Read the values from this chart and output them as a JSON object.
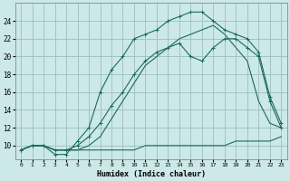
{
  "title": "",
  "xlabel": "Humidex (Indice chaleur)",
  "bg_color": "#cce8e8",
  "grid_color": "#9bbfbf",
  "line_color": "#1a6b5a",
  "xlim": [
    -0.5,
    23.5
  ],
  "ylim": [
    8.5,
    26.0
  ],
  "xticks": [
    0,
    1,
    2,
    3,
    4,
    5,
    6,
    7,
    8,
    9,
    10,
    11,
    12,
    13,
    14,
    15,
    16,
    17,
    18,
    19,
    20,
    21,
    22,
    23
  ],
  "yticks": [
    10,
    12,
    14,
    16,
    18,
    20,
    22,
    24
  ],
  "line1_x": [
    0,
    1,
    2,
    3,
    4,
    5,
    6,
    7,
    8,
    9,
    10,
    11,
    12,
    13,
    14,
    15,
    16,
    17,
    18,
    19,
    20,
    21,
    22,
    23
  ],
  "line1_y": [
    9.5,
    10,
    10,
    9.5,
    9.5,
    9.5,
    9.5,
    9.5,
    9.5,
    9.5,
    9.5,
    10,
    10,
    10,
    10,
    10,
    10,
    10,
    10,
    10.5,
    10.5,
    10.5,
    10.5,
    11
  ],
  "line2_x": [
    0,
    1,
    2,
    3,
    4,
    5,
    6,
    7,
    8,
    9,
    10,
    11,
    12,
    13,
    14,
    15,
    16,
    17,
    18,
    19,
    20,
    21,
    22,
    23
  ],
  "line2_y": [
    9.5,
    10,
    10,
    9.5,
    9.5,
    10,
    11,
    12.5,
    14.5,
    16,
    18,
    19.5,
    20.5,
    21,
    21.5,
    20,
    19.5,
    21,
    22,
    22,
    21,
    20,
    15,
    12
  ],
  "line3_x": [
    0,
    1,
    2,
    3,
    4,
    5,
    6,
    7,
    8,
    9,
    10,
    11,
    12,
    13,
    14,
    15,
    16,
    17,
    18,
    19,
    20,
    21,
    22,
    23
  ],
  "line3_y": [
    9.5,
    10,
    10,
    9,
    9,
    10.5,
    12,
    16,
    18.5,
    20,
    22,
    22.5,
    23,
    24,
    24.5,
    25,
    25,
    24,
    23,
    22.5,
    22,
    20.5,
    15.5,
    12.5
  ],
  "line_mid_x": [
    0,
    1,
    2,
    3,
    4,
    5,
    6,
    7,
    8,
    9,
    10,
    11,
    12,
    13,
    14,
    15,
    16,
    17,
    18,
    19,
    20,
    21,
    22,
    23
  ],
  "line_mid_y": [
    9.5,
    10,
    10,
    9.5,
    9.5,
    9.5,
    10,
    11,
    13,
    15,
    17,
    19,
    20,
    21,
    22,
    22.5,
    23,
    23.5,
    22.5,
    21,
    19.5,
    15,
    12.5,
    12
  ]
}
